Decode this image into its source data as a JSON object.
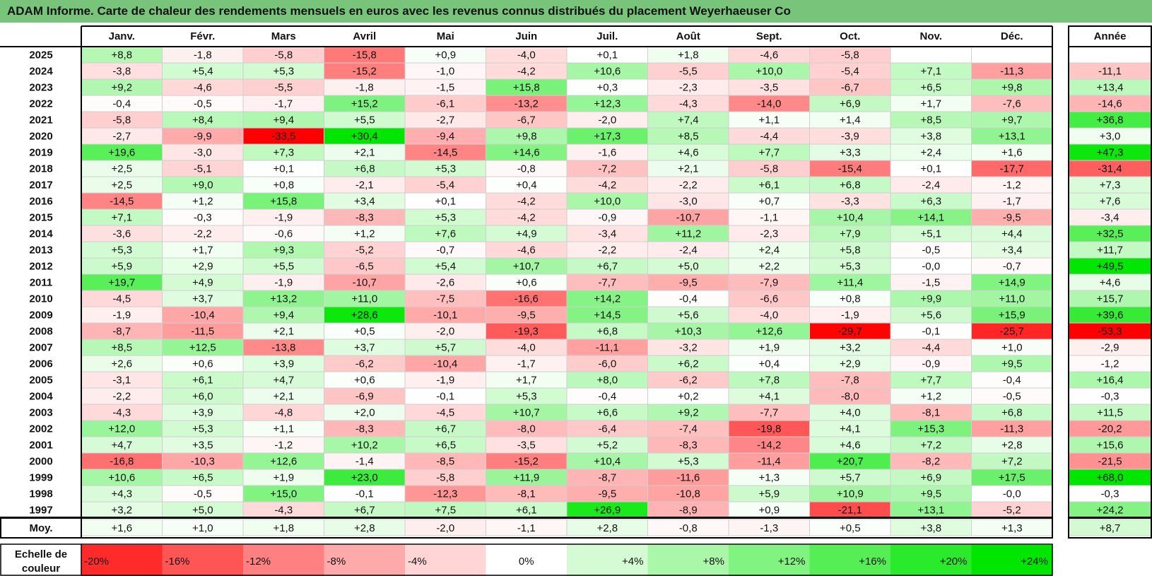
{
  "title": "ADAM Informe. Carte de chaleur des rendements mensuels en euros avec les revenus connus distribués du placement Weyerhaeuser Co",
  "colors": {
    "title_bg": "#77c47a",
    "negative": "#ff0000",
    "neutral": "#ffffff",
    "positive": "#00e600"
  },
  "chart_data": {
    "type": "heatmap",
    "months": [
      "Janv.",
      "Févr.",
      "Mars",
      "Avril",
      "Mai",
      "Juin",
      "Juil.",
      "Août",
      "Sept.",
      "Oct.",
      "Nov.",
      "Déc."
    ],
    "year_header": "Année",
    "rows": [
      {
        "year": "2025",
        "values": [
          "+8,8",
          "-1,8",
          "-5,8",
          "-15,8",
          "+0,9",
          "-4,0",
          "+0,1",
          "+1,8",
          "-4,6",
          "-5,8",
          "",
          ""
        ],
        "annual": ""
      },
      {
        "year": "2024",
        "values": [
          "-3,8",
          "+5,4",
          "+5,3",
          "-15,2",
          "-1,0",
          "-4,2",
          "+10,6",
          "-5,5",
          "+10,0",
          "-5,4",
          "+7,1",
          "-11,3"
        ],
        "annual": "-11,1"
      },
      {
        "year": "2023",
        "values": [
          "+9,2",
          "-4,6",
          "-5,5",
          "-1,8",
          "-1,5",
          "+15,8",
          "+0,3",
          "-2,3",
          "-3,5",
          "-6,7",
          "+6,5",
          "+9,8"
        ],
        "annual": "+13,4"
      },
      {
        "year": "2022",
        "values": [
          "-0,4",
          "-0,5",
          "-1,7",
          "+15,2",
          "-6,1",
          "-13,2",
          "+12,3",
          "-4,3",
          "-14,0",
          "+6,9",
          "+1,7",
          "-7,6"
        ],
        "annual": "-14,6"
      },
      {
        "year": "2021",
        "values": [
          "-5,8",
          "+8,4",
          "+9,4",
          "+5,5",
          "-2,7",
          "-6,7",
          "-2,0",
          "+7,4",
          "+1,1",
          "+1,4",
          "+8,5",
          "+9,7"
        ],
        "annual": "+36,8"
      },
      {
        "year": "2020",
        "values": [
          "-2,7",
          "-9,9",
          "-33,5",
          "+30,4",
          "-9,4",
          "+9,8",
          "+17,3",
          "+8,5",
          "-4,4",
          "-3,9",
          "+3,8",
          "+13,1"
        ],
        "annual": "+3,0"
      },
      {
        "year": "2019",
        "values": [
          "+19,6",
          "-3,0",
          "+7,3",
          "+2,1",
          "-14,5",
          "+14,6",
          "-1,6",
          "+4,6",
          "+7,7",
          "+3,3",
          "+2,4",
          "+1,6"
        ],
        "annual": "+47,3"
      },
      {
        "year": "2018",
        "values": [
          "+2,5",
          "-5,1",
          "+0,1",
          "+6,8",
          "+5,3",
          "-0,8",
          "-7,2",
          "+2,1",
          "-5,8",
          "-15,4",
          "+0,1",
          "-17,7"
        ],
        "annual": "-31,4"
      },
      {
        "year": "2017",
        "values": [
          "+2,5",
          "+9,0",
          "+0,8",
          "-2,1",
          "-5,4",
          "+0,4",
          "-4,2",
          "-2,2",
          "+6,1",
          "+6,8",
          "-2,4",
          "-1,2"
        ],
        "annual": "+7,3"
      },
      {
        "year": "2016",
        "values": [
          "-14,5",
          "+1,2",
          "+15,8",
          "+3,4",
          "+0,1",
          "-4,2",
          "+10,0",
          "-3,0",
          "+0,7",
          "-3,3",
          "+6,3",
          "-1,7"
        ],
        "annual": "+7,6"
      },
      {
        "year": "2015",
        "values": [
          "+7,1",
          "-0,3",
          "-1,9",
          "-8,3",
          "+5,3",
          "-4,2",
          "-0,9",
          "-10,7",
          "-1,1",
          "+10,4",
          "+14,1",
          "-9,5"
        ],
        "annual": "-3,4"
      },
      {
        "year": "2014",
        "values": [
          "-3,6",
          "-2,2",
          "-0,6",
          "+1,2",
          "+7,6",
          "+4,9",
          "-3,4",
          "+11,2",
          "-2,3",
          "+7,9",
          "+5,1",
          "+4,4"
        ],
        "annual": "+32,5"
      },
      {
        "year": "2013",
        "values": [
          "+5,3",
          "+1,7",
          "+9,3",
          "-5,2",
          "-0,7",
          "-4,6",
          "-2,2",
          "-2,4",
          "+2,4",
          "+5,8",
          "-0,5",
          "+3,4"
        ],
        "annual": "+11,7"
      },
      {
        "year": "2012",
        "values": [
          "+5,9",
          "+2,9",
          "+5,5",
          "-6,5",
          "+5,4",
          "+10,7",
          "+6,7",
          "+5,0",
          "+2,2",
          "+5,3",
          "-0,0",
          "-0,7"
        ],
        "annual": "+49,5"
      },
      {
        "year": "2011",
        "values": [
          "+19,7",
          "+4,9",
          "-1,9",
          "-10,7",
          "-2,6",
          "+0,6",
          "-7,7",
          "-9,5",
          "-7,9",
          "+11,4",
          "-1,5",
          "+14,9"
        ],
        "annual": "+4,6"
      },
      {
        "year": "2010",
        "values": [
          "-4,5",
          "+3,7",
          "+13,2",
          "+11,0",
          "-7,5",
          "-16,6",
          "+14,2",
          "-0,4",
          "-6,6",
          "+0,8",
          "+9,9",
          "+11,0"
        ],
        "annual": "+15,7"
      },
      {
        "year": "2009",
        "values": [
          "-1,9",
          "-10,4",
          "+9,4",
          "+28,6",
          "-10,1",
          "-9,5",
          "+14,5",
          "+5,6",
          "-4,0",
          "-1,9",
          "+5,6",
          "+15,9"
        ],
        "annual": "+39,6"
      },
      {
        "year": "2008",
        "values": [
          "-8,7",
          "-11,5",
          "+2,1",
          "+0,5",
          "-2,0",
          "-19,3",
          "+6,8",
          "+10,3",
          "+12,6",
          "-29,7",
          "-0,1",
          "-25,7"
        ],
        "annual": "-53,3"
      },
      {
        "year": "2007",
        "values": [
          "+8,5",
          "+12,5",
          "-13,8",
          "+3,7",
          "+5,7",
          "-4,0",
          "-11,1",
          "-3,2",
          "+1,9",
          "+3,2",
          "-4,4",
          "+1,0"
        ],
        "annual": "-2,9"
      },
      {
        "year": "2006",
        "values": [
          "+2,6",
          "+0,6",
          "+3,9",
          "-6,2",
          "-10,4",
          "-1,7",
          "-6,0",
          "+6,2",
          "+0,4",
          "+2,9",
          "-0,9",
          "+9,5"
        ],
        "annual": "-1,2"
      },
      {
        "year": "2005",
        "values": [
          "-3,1",
          "+6,1",
          "+4,7",
          "+0,6",
          "-1,9",
          "+1,7",
          "+8,0",
          "-6,2",
          "+7,8",
          "-7,8",
          "+7,7",
          "-0,4"
        ],
        "annual": "+16,4"
      },
      {
        "year": "2004",
        "values": [
          "-2,2",
          "+6,0",
          "+2,1",
          "-6,9",
          "-0,1",
          "+5,3",
          "-0,4",
          "+0,2",
          "+4,1",
          "-8,0",
          "+1,2",
          "-0,5"
        ],
        "annual": "-0,3"
      },
      {
        "year": "2003",
        "values": [
          "-4,3",
          "+3,9",
          "-4,8",
          "+2,0",
          "-4,5",
          "+10,7",
          "+6,6",
          "+9,2",
          "-7,7",
          "+4,0",
          "-8,1",
          "+6,8"
        ],
        "annual": "+11,5"
      },
      {
        "year": "2002",
        "values": [
          "+12,0",
          "+5,3",
          "+1,1",
          "-8,3",
          "+6,7",
          "-8,0",
          "-6,4",
          "-7,4",
          "-19,8",
          "+4,1",
          "+15,3",
          "-11,3"
        ],
        "annual": "-20,2"
      },
      {
        "year": "2001",
        "values": [
          "+4,7",
          "+3,5",
          "-1,2",
          "+10,2",
          "+6,5",
          "-3,5",
          "+5,2",
          "-8,3",
          "-14,2",
          "+4,6",
          "+7,2",
          "+2,8"
        ],
        "annual": "+15,6"
      },
      {
        "year": "2000",
        "values": [
          "-16,8",
          "-10,3",
          "+12,6",
          "-1,4",
          "-8,5",
          "-15,2",
          "+10,4",
          "+5,3",
          "-11,4",
          "+20,7",
          "-8,2",
          "+7,2"
        ],
        "annual": "-21,5"
      },
      {
        "year": "1999",
        "values": [
          "+10,6",
          "+6,5",
          "+1,9",
          "+23,0",
          "-5,8",
          "+11,9",
          "-8,7",
          "-11,6",
          "+1,3",
          "+5,7",
          "+6,9",
          "+17,5"
        ],
        "annual": "+68,0"
      },
      {
        "year": "1998",
        "values": [
          "+4,3",
          "-0,5",
          "+15,0",
          "-0,1",
          "-12,3",
          "-8,1",
          "-9,5",
          "-10,8",
          "+5,9",
          "+10,9",
          "+9,5",
          "-0,0"
        ],
        "annual": "-0,3"
      },
      {
        "year": "1997",
        "values": [
          "+3,2",
          "+5,0",
          "-4,3",
          "+6,7",
          "+7,5",
          "+6,1",
          "+26,9",
          "-8,9",
          "+0,9",
          "-21,1",
          "+13,1",
          "-5,2"
        ],
        "annual": "+24,2"
      }
    ],
    "average": {
      "label": "Moy.",
      "values": [
        "+1,6",
        "+1,0",
        "+1,8",
        "+2,8",
        "-2,0",
        "-1,1",
        "+2,8",
        "-0,8",
        "-1,3",
        "+0,5",
        "+3,8",
        "+1,3"
      ],
      "annual": "+8,7"
    },
    "scale": {
      "label_line1": "Echelle de",
      "label_line2": "couleur",
      "steps": [
        {
          "label": "-20%",
          "value": -20
        },
        {
          "label": "-16%",
          "value": -16
        },
        {
          "label": "-12%",
          "value": -12
        },
        {
          "label": "-8%",
          "value": -8
        },
        {
          "label": "-4%",
          "value": -4
        },
        {
          "label": "0%",
          "value": 0
        },
        {
          "label": "+4%",
          "value": 4
        },
        {
          "label": "+8%",
          "value": 8
        },
        {
          "label": "+12%",
          "value": 12
        },
        {
          "label": "+16%",
          "value": 16
        },
        {
          "label": "+20%",
          "value": 20
        },
        {
          "label": "+24%",
          "value": 24
        }
      ]
    }
  }
}
